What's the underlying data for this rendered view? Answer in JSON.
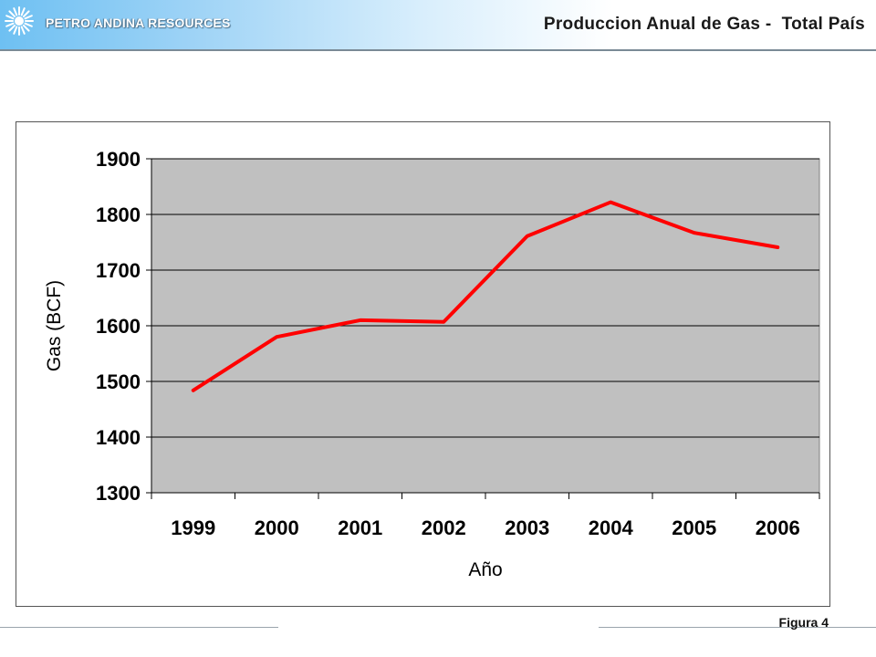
{
  "header": {
    "brand": "PETRO ANDINA RESOURCES",
    "title": "Produccion Anual de Gas -  Total País",
    "logo_icon": "sunburst-icon"
  },
  "footer": {
    "figure_label": "Figura 4"
  },
  "colors": {
    "line": "#ff0000",
    "plot_background": "#c0c0c0",
    "grid": "#000000"
  },
  "chart_data": {
    "type": "line",
    "title": "",
    "xlabel": "Año",
    "ylabel": "Gas (BCF)",
    "categories": [
      "1999",
      "2000",
      "2001",
      "2002",
      "2003",
      "2004",
      "2005",
      "2006"
    ],
    "series": [
      {
        "values": [
          1484,
          1580,
          1610,
          1607,
          1761,
          1822,
          1767,
          1741
        ]
      }
    ],
    "ylim": [
      1300,
      1900
    ],
    "yticks": [
      1300,
      1400,
      1500,
      1600,
      1700,
      1800,
      1900
    ],
    "grid": true,
    "legend": "none"
  }
}
